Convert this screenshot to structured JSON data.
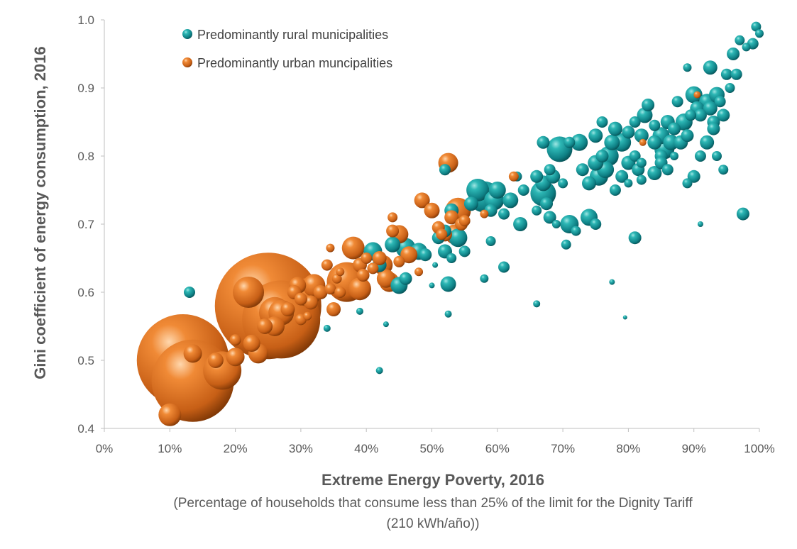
{
  "chart_data": {
    "type": "scatter",
    "title": "",
    "xlabel": "Extreme Energy Poverty, 2016",
    "xlabel_sub": "(Percentage of households that consume less than 25% of the limit for the Dignity Tariff",
    "xlabel_sub2": "(210 kWh/año))",
    "ylabel": "Gini coefficient of energy consumption, 2016",
    "xlim": [
      0,
      1
    ],
    "ylim": [
      0.4,
      1.0
    ],
    "x_ticks": [
      "0%",
      "10%",
      "20%",
      "30%",
      "40%",
      "50%",
      "60%",
      "70%",
      "80%",
      "90%",
      "100%"
    ],
    "y_ticks": [
      "0.4",
      "0.5",
      "0.6",
      "0.7",
      "0.8",
      "0.9",
      "1.0"
    ],
    "grid": false,
    "legend_position": "top-left",
    "series": [
      {
        "name": "Predominantly rural municipalities",
        "color": "#17979b",
        "points": [
          [
            0.13,
            0.6,
            8
          ],
          [
            0.34,
            0.547,
            5
          ],
          [
            0.39,
            0.572,
            5
          ],
          [
            0.43,
            0.553,
            4
          ],
          [
            0.42,
            0.485,
            5
          ],
          [
            0.525,
            0.568,
            5
          ],
          [
            0.525,
            0.612,
            11
          ],
          [
            0.45,
            0.61,
            12
          ],
          [
            0.46,
            0.62,
            9
          ],
          [
            0.5,
            0.61,
            4
          ],
          [
            0.505,
            0.64,
            4
          ],
          [
            0.52,
            0.66,
            10
          ],
          [
            0.52,
            0.69,
            9
          ],
          [
            0.53,
            0.72,
            10
          ],
          [
            0.54,
            0.68,
            13
          ],
          [
            0.55,
            0.66,
            8
          ],
          [
            0.41,
            0.66,
            13
          ],
          [
            0.42,
            0.64,
            10
          ],
          [
            0.44,
            0.67,
            11
          ],
          [
            0.46,
            0.665,
            14
          ],
          [
            0.48,
            0.66,
            12
          ],
          [
            0.49,
            0.655,
            9
          ],
          [
            0.51,
            0.68,
            9
          ],
          [
            0.53,
            0.65,
            7
          ],
          [
            0.58,
            0.62,
            6
          ],
          [
            0.59,
            0.675,
            7
          ],
          [
            0.61,
            0.637,
            8
          ],
          [
            0.66,
            0.583,
            5
          ],
          [
            0.705,
            0.67,
            7
          ],
          [
            0.775,
            0.615,
            4
          ],
          [
            0.795,
            0.563,
            3
          ],
          [
            0.81,
            0.68,
            9
          ],
          [
            0.91,
            0.7,
            4
          ],
          [
            0.975,
            0.715,
            9
          ],
          [
            0.57,
            0.75,
            16
          ],
          [
            0.58,
            0.74,
            22
          ],
          [
            0.595,
            0.735,
            14
          ],
          [
            0.6,
            0.75,
            12
          ],
          [
            0.56,
            0.73,
            10
          ],
          [
            0.59,
            0.72,
            9
          ],
          [
            0.61,
            0.715,
            8
          ],
          [
            0.62,
            0.735,
            11
          ],
          [
            0.635,
            0.7,
            10
          ],
          [
            0.64,
            0.75,
            8
          ],
          [
            0.66,
            0.72,
            7
          ],
          [
            0.67,
            0.745,
            18
          ],
          [
            0.675,
            0.73,
            9
          ],
          [
            0.68,
            0.71,
            9
          ],
          [
            0.69,
            0.7,
            6
          ],
          [
            0.71,
            0.7,
            13
          ],
          [
            0.72,
            0.69,
            7
          ],
          [
            0.74,
            0.71,
            12
          ],
          [
            0.75,
            0.7,
            8
          ],
          [
            0.52,
            0.78,
            8
          ],
          [
            0.63,
            0.77,
            7
          ],
          [
            0.66,
            0.77,
            9
          ],
          [
            0.67,
            0.76,
            11
          ],
          [
            0.68,
            0.78,
            8
          ],
          [
            0.685,
            0.77,
            10
          ],
          [
            0.7,
            0.76,
            7
          ],
          [
            0.695,
            0.81,
            18
          ],
          [
            0.67,
            0.82,
            9
          ],
          [
            0.71,
            0.82,
            8
          ],
          [
            0.725,
            0.82,
            12
          ],
          [
            0.73,
            0.78,
            9
          ],
          [
            0.74,
            0.76,
            10
          ],
          [
            0.75,
            0.79,
            11
          ],
          [
            0.755,
            0.77,
            13
          ],
          [
            0.76,
            0.8,
            9
          ],
          [
            0.765,
            0.78,
            12
          ],
          [
            0.77,
            0.8,
            14
          ],
          [
            0.78,
            0.75,
            8
          ],
          [
            0.79,
            0.77,
            9
          ],
          [
            0.8,
            0.79,
            10
          ],
          [
            0.81,
            0.8,
            8
          ],
          [
            0.815,
            0.78,
            9
          ],
          [
            0.82,
            0.79,
            7
          ],
          [
            0.75,
            0.83,
            10
          ],
          [
            0.76,
            0.85,
            8
          ],
          [
            0.775,
            0.82,
            11
          ],
          [
            0.78,
            0.84,
            10
          ],
          [
            0.79,
            0.82,
            13
          ],
          [
            0.8,
            0.835,
            9
          ],
          [
            0.81,
            0.85,
            8
          ],
          [
            0.82,
            0.83,
            10
          ],
          [
            0.825,
            0.86,
            11
          ],
          [
            0.83,
            0.875,
            9
          ],
          [
            0.84,
            0.82,
            10
          ],
          [
            0.84,
            0.845,
            8
          ],
          [
            0.85,
            0.8,
            9
          ],
          [
            0.85,
            0.83,
            12
          ],
          [
            0.855,
            0.81,
            14
          ],
          [
            0.86,
            0.85,
            10
          ],
          [
            0.865,
            0.82,
            11
          ],
          [
            0.87,
            0.84,
            9
          ],
          [
            0.875,
            0.88,
            8
          ],
          [
            0.88,
            0.82,
            10
          ],
          [
            0.885,
            0.85,
            12
          ],
          [
            0.89,
            0.83,
            9
          ],
          [
            0.895,
            0.86,
            8
          ],
          [
            0.9,
            0.89,
            12
          ],
          [
            0.905,
            0.87,
            10
          ],
          [
            0.91,
            0.86,
            9
          ],
          [
            0.92,
            0.88,
            11
          ],
          [
            0.925,
            0.87,
            10
          ],
          [
            0.93,
            0.85,
            9
          ],
          [
            0.935,
            0.89,
            11
          ],
          [
            0.94,
            0.88,
            8
          ],
          [
            0.945,
            0.86,
            9
          ],
          [
            0.95,
            0.92,
            8
          ],
          [
            0.955,
            0.9,
            7
          ],
          [
            0.96,
            0.95,
            9
          ],
          [
            0.965,
            0.92,
            8
          ],
          [
            0.97,
            0.97,
            7
          ],
          [
            0.98,
            0.96,
            6
          ],
          [
            0.99,
            0.965,
            8
          ],
          [
            0.995,
            0.99,
            7
          ],
          [
            1.0,
            0.98,
            6
          ],
          [
            0.925,
            0.93,
            10
          ],
          [
            0.89,
            0.93,
            6
          ],
          [
            0.84,
            0.775,
            10
          ],
          [
            0.85,
            0.79,
            9
          ],
          [
            0.86,
            0.78,
            8
          ],
          [
            0.89,
            0.76,
            7
          ],
          [
            0.9,
            0.77,
            9
          ],
          [
            0.91,
            0.8,
            8
          ],
          [
            0.935,
            0.8,
            7
          ],
          [
            0.945,
            0.78,
            7
          ],
          [
            0.8,
            0.76,
            6
          ],
          [
            0.82,
            0.765,
            7
          ],
          [
            0.87,
            0.8,
            6
          ],
          [
            0.92,
            0.82,
            10
          ],
          [
            0.93,
            0.84,
            9
          ]
        ]
      },
      {
        "name": "Predominantly urban muncipalities",
        "color": "#e07a2c",
        "points": [
          [
            0.12,
            0.5,
            65
          ],
          [
            0.135,
            0.47,
            58
          ],
          [
            0.25,
            0.58,
            75
          ],
          [
            0.27,
            0.56,
            55
          ],
          [
            0.22,
            0.6,
            22
          ],
          [
            0.26,
            0.57,
            22
          ],
          [
            0.31,
            0.6,
            20
          ],
          [
            0.32,
            0.61,
            16
          ],
          [
            0.235,
            0.51,
            14
          ],
          [
            0.18,
            0.485,
            27
          ],
          [
            0.1,
            0.42,
            16
          ],
          [
            0.135,
            0.51,
            13
          ],
          [
            0.17,
            0.5,
            11
          ],
          [
            0.2,
            0.505,
            13
          ],
          [
            0.2,
            0.53,
            8
          ],
          [
            0.225,
            0.525,
            12
          ],
          [
            0.245,
            0.55,
            11
          ],
          [
            0.29,
            0.6,
            10
          ],
          [
            0.295,
            0.61,
            12
          ],
          [
            0.3,
            0.59,
            9
          ],
          [
            0.315,
            0.585,
            10
          ],
          [
            0.33,
            0.6,
            10
          ],
          [
            0.345,
            0.605,
            8
          ],
          [
            0.35,
            0.575,
            10
          ],
          [
            0.355,
            0.62,
            7
          ],
          [
            0.36,
            0.63,
            6
          ],
          [
            0.36,
            0.6,
            8
          ],
          [
            0.37,
            0.615,
            28
          ],
          [
            0.39,
            0.605,
            16
          ],
          [
            0.38,
            0.665,
            16
          ],
          [
            0.39,
            0.64,
            10
          ],
          [
            0.395,
            0.625,
            9
          ],
          [
            0.4,
            0.65,
            8
          ],
          [
            0.41,
            0.635,
            8
          ],
          [
            0.42,
            0.65,
            10
          ],
          [
            0.425,
            0.64,
            14
          ],
          [
            0.43,
            0.62,
            13
          ],
          [
            0.435,
            0.615,
            14
          ],
          [
            0.44,
            0.69,
            9
          ],
          [
            0.44,
            0.71,
            7
          ],
          [
            0.45,
            0.685,
            13
          ],
          [
            0.45,
            0.645,
            8
          ],
          [
            0.465,
            0.655,
            12
          ],
          [
            0.48,
            0.63,
            6
          ],
          [
            0.485,
            0.735,
            11
          ],
          [
            0.5,
            0.72,
            11
          ],
          [
            0.51,
            0.695,
            9
          ],
          [
            0.515,
            0.685,
            8
          ],
          [
            0.52,
            0.685,
            10
          ],
          [
            0.525,
            0.79,
            14
          ],
          [
            0.53,
            0.71,
            10
          ],
          [
            0.535,
            0.685,
            14
          ],
          [
            0.54,
            0.72,
            18
          ],
          [
            0.545,
            0.7,
            9
          ],
          [
            0.55,
            0.705,
            8
          ],
          [
            0.345,
            0.665,
            6
          ],
          [
            0.34,
            0.64,
            8
          ],
          [
            0.58,
            0.715,
            6
          ],
          [
            0.625,
            0.77,
            7
          ],
          [
            0.822,
            0.82,
            5
          ],
          [
            0.905,
            0.89,
            5
          ],
          [
            0.28,
            0.575,
            10
          ],
          [
            0.26,
            0.55,
            14
          ],
          [
            0.27,
            0.57,
            18
          ],
          [
            0.3,
            0.56,
            8
          ],
          [
            0.31,
            0.565,
            6
          ]
        ]
      }
    ]
  }
}
